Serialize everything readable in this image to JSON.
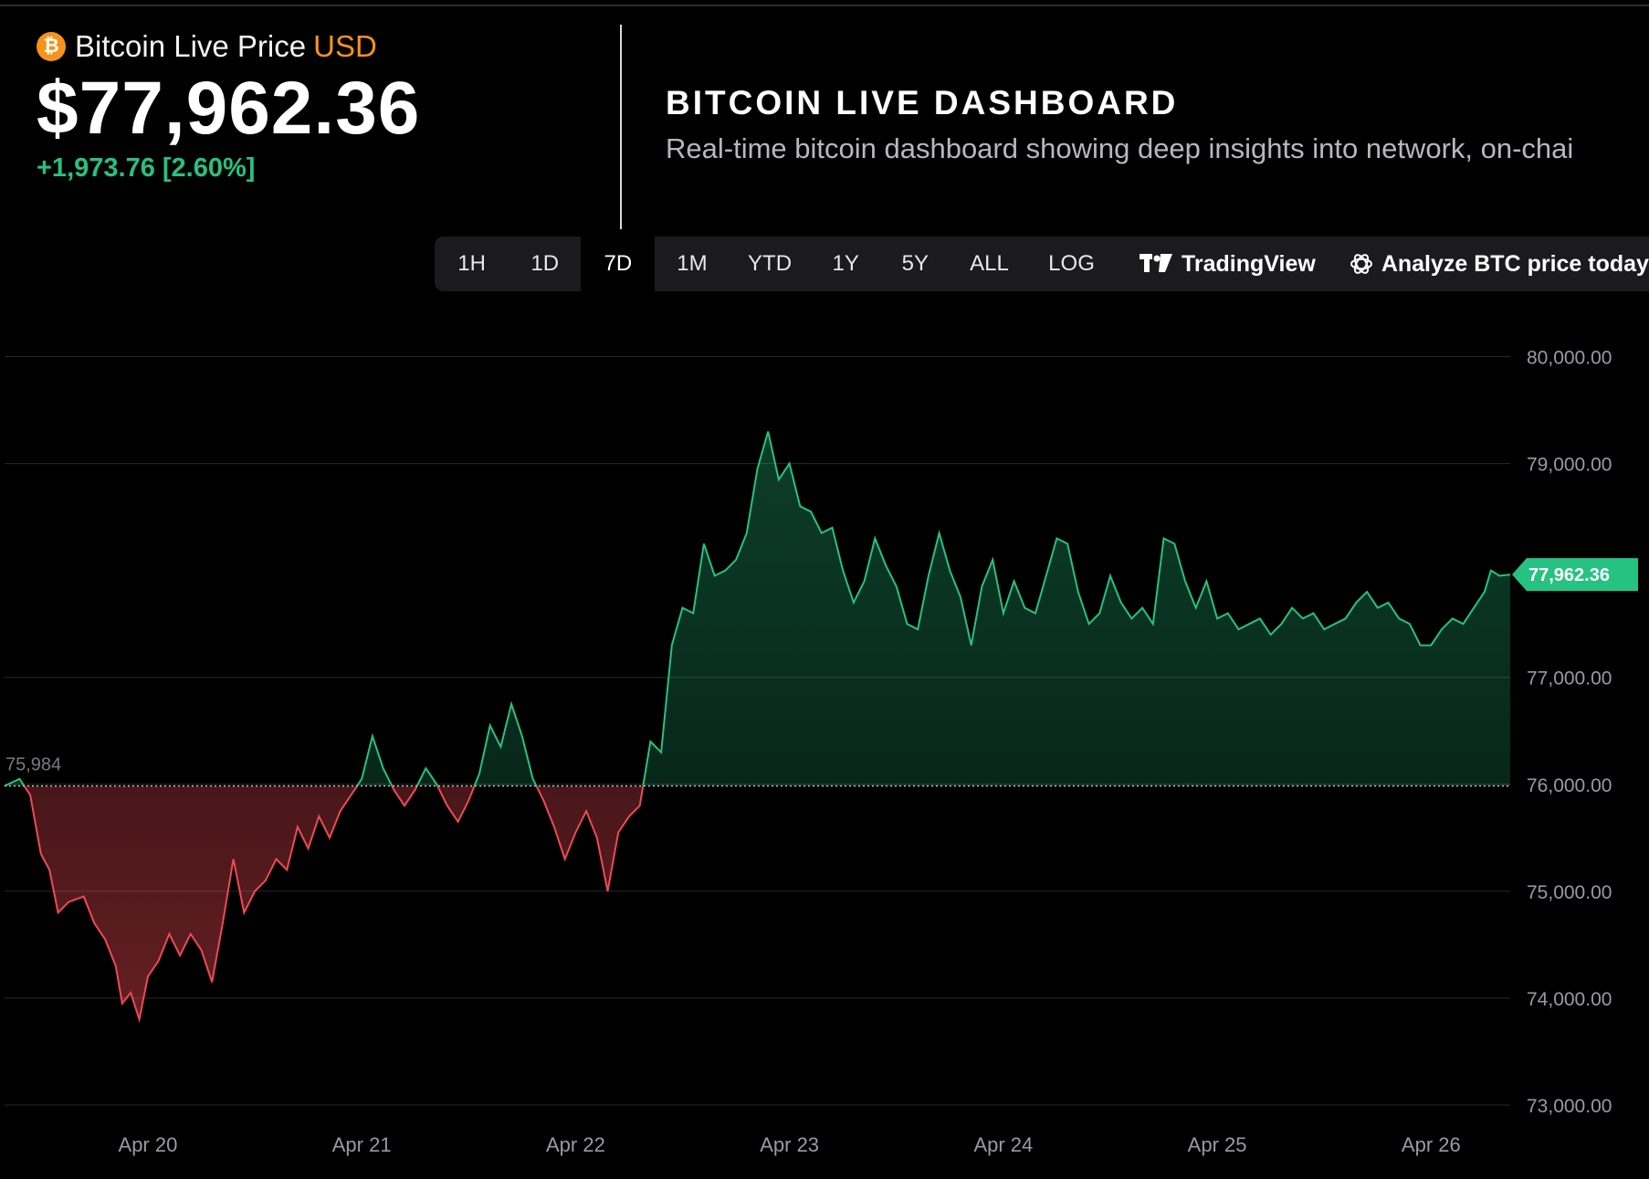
{
  "header": {
    "title": "Bitcoin Live Price",
    "currency": "USD",
    "price": "$77,962.36",
    "change": "+1,973.76 [2.60%]",
    "coin_glyph": "₿"
  },
  "dashboard": {
    "title": "BITCOIN LIVE DASHBOARD",
    "description": "Real-time bitcoin dashboard showing deep insights into network, on-chai"
  },
  "toolbar": {
    "ranges": [
      "1H",
      "1D",
      "7D",
      "1M",
      "YTD",
      "1Y",
      "5Y",
      "ALL",
      "LOG"
    ],
    "active_range": "7D",
    "tradingview_label": "TradingView",
    "analyze_label": "Analyze BTC price today"
  },
  "colors": {
    "up": "#26c281",
    "down": "#ef4a53",
    "accent": "#f7931a",
    "grid": "#2a2a2e",
    "tick": "#9a9aa6"
  },
  "chart_data": {
    "type": "area",
    "title": "",
    "xlabel": "",
    "ylabel": "",
    "baseline_label": "75,984",
    "baseline_value": 75984,
    "last_price_label": "77,962.36",
    "ylim": [
      73000,
      80500
    ],
    "xlim": [
      -0.67,
      6.37
    ],
    "y_ticks": [
      {
        "value": 80000,
        "label": "80,000.00"
      },
      {
        "value": 79000,
        "label": "79,000.00"
      },
      {
        "value": 77000,
        "label": "77,000.00"
      },
      {
        "value": 76000,
        "label": "76,000.00"
      },
      {
        "value": 75000,
        "label": "75,000.00"
      },
      {
        "value": 74000,
        "label": "74,000.00"
      },
      {
        "value": 73000,
        "label": "73,000.00"
      }
    ],
    "x_ticks": [
      {
        "value": 0,
        "label": "Apr 20"
      },
      {
        "value": 1,
        "label": "Apr 21"
      },
      {
        "value": 2,
        "label": "Apr 22"
      },
      {
        "value": 3,
        "label": "Apr 23"
      },
      {
        "value": 4,
        "label": "Apr 24"
      },
      {
        "value": 5,
        "label": "Apr 25"
      },
      {
        "value": 6,
        "label": "Apr 26"
      }
    ],
    "grid": true,
    "series": [
      {
        "values": [
          [
            -0.67,
            75984
          ],
          [
            -0.6,
            76050
          ],
          [
            -0.55,
            75900
          ],
          [
            -0.5,
            75350
          ],
          [
            -0.46,
            75200
          ],
          [
            -0.42,
            74800
          ],
          [
            -0.37,
            74900
          ],
          [
            -0.3,
            74950
          ],
          [
            -0.25,
            74700
          ],
          [
            -0.2,
            74550
          ],
          [
            -0.15,
            74300
          ],
          [
            -0.12,
            73950
          ],
          [
            -0.08,
            74050
          ],
          [
            -0.04,
            73800
          ],
          [
            0.0,
            74200
          ],
          [
            0.05,
            74350
          ],
          [
            0.1,
            74600
          ],
          [
            0.15,
            74400
          ],
          [
            0.2,
            74600
          ],
          [
            0.25,
            74450
          ],
          [
            0.3,
            74150
          ],
          [
            0.35,
            74700
          ],
          [
            0.4,
            75300
          ],
          [
            0.45,
            74800
          ],
          [
            0.5,
            75000
          ],
          [
            0.55,
            75100
          ],
          [
            0.6,
            75300
          ],
          [
            0.65,
            75200
          ],
          [
            0.7,
            75600
          ],
          [
            0.75,
            75400
          ],
          [
            0.8,
            75700
          ],
          [
            0.85,
            75500
          ],
          [
            0.9,
            75750
          ],
          [
            0.95,
            75900
          ],
          [
            1.0,
            76050
          ],
          [
            1.05,
            76450
          ],
          [
            1.1,
            76150
          ],
          [
            1.15,
            75950
          ],
          [
            1.2,
            75800
          ],
          [
            1.25,
            75950
          ],
          [
            1.3,
            76150
          ],
          [
            1.35,
            76000
          ],
          [
            1.4,
            75800
          ],
          [
            1.45,
            75650
          ],
          [
            1.5,
            75850
          ],
          [
            1.55,
            76100
          ],
          [
            1.6,
            76550
          ],
          [
            1.65,
            76350
          ],
          [
            1.7,
            76750
          ],
          [
            1.75,
            76450
          ],
          [
            1.8,
            76050
          ],
          [
            1.85,
            75850
          ],
          [
            1.9,
            75600
          ],
          [
            1.95,
            75300
          ],
          [
            2.0,
            75550
          ],
          [
            2.05,
            75750
          ],
          [
            2.1,
            75500
          ],
          [
            2.15,
            75000
          ],
          [
            2.2,
            75550
          ],
          [
            2.25,
            75700
          ],
          [
            2.3,
            75800
          ],
          [
            2.35,
            76400
          ],
          [
            2.4,
            76300
          ],
          [
            2.45,
            77300
          ],
          [
            2.5,
            77650
          ],
          [
            2.55,
            77600
          ],
          [
            2.6,
            78250
          ],
          [
            2.65,
            77950
          ],
          [
            2.7,
            78000
          ],
          [
            2.75,
            78100
          ],
          [
            2.8,
            78350
          ],
          [
            2.85,
            78950
          ],
          [
            2.9,
            79300
          ],
          [
            2.95,
            78850
          ],
          [
            3.0,
            79000
          ],
          [
            3.05,
            78600
          ],
          [
            3.1,
            78550
          ],
          [
            3.15,
            78350
          ],
          [
            3.2,
            78400
          ],
          [
            3.25,
            78000
          ],
          [
            3.3,
            77700
          ],
          [
            3.35,
            77900
          ],
          [
            3.4,
            78300
          ],
          [
            3.45,
            78050
          ],
          [
            3.5,
            77850
          ],
          [
            3.55,
            77500
          ],
          [
            3.6,
            77450
          ],
          [
            3.65,
            77950
          ],
          [
            3.7,
            78350
          ],
          [
            3.75,
            78000
          ],
          [
            3.8,
            77750
          ],
          [
            3.85,
            77300
          ],
          [
            3.9,
            77850
          ],
          [
            3.95,
            78100
          ],
          [
            4.0,
            77600
          ],
          [
            4.05,
            77900
          ],
          [
            4.1,
            77650
          ],
          [
            4.15,
            77600
          ],
          [
            4.2,
            77950
          ],
          [
            4.25,
            78300
          ],
          [
            4.3,
            78250
          ],
          [
            4.35,
            77800
          ],
          [
            4.4,
            77500
          ],
          [
            4.45,
            77600
          ],
          [
            4.5,
            77950
          ],
          [
            4.55,
            77700
          ],
          [
            4.6,
            77550
          ],
          [
            4.65,
            77650
          ],
          [
            4.7,
            77500
          ],
          [
            4.75,
            78300
          ],
          [
            4.8,
            78250
          ],
          [
            4.85,
            77900
          ],
          [
            4.9,
            77650
          ],
          [
            4.95,
            77900
          ],
          [
            5.0,
            77550
          ],
          [
            5.05,
            77600
          ],
          [
            5.1,
            77450
          ],
          [
            5.15,
            77500
          ],
          [
            5.2,
            77550
          ],
          [
            5.25,
            77400
          ],
          [
            5.3,
            77500
          ],
          [
            5.35,
            77650
          ],
          [
            5.4,
            77550
          ],
          [
            5.45,
            77600
          ],
          [
            5.5,
            77450
          ],
          [
            5.55,
            77500
          ],
          [
            5.6,
            77550
          ],
          [
            5.65,
            77700
          ],
          [
            5.7,
            77800
          ],
          [
            5.75,
            77650
          ],
          [
            5.8,
            77700
          ],
          [
            5.85,
            77550
          ],
          [
            5.9,
            77500
          ],
          [
            5.95,
            77300
          ],
          [
            6.0,
            77300
          ],
          [
            6.05,
            77450
          ],
          [
            6.1,
            77550
          ],
          [
            6.15,
            77500
          ],
          [
            6.2,
            77650
          ],
          [
            6.25,
            77800
          ],
          [
            6.28,
            78000
          ],
          [
            6.32,
            77950
          ],
          [
            6.37,
            77962
          ]
        ]
      }
    ]
  }
}
